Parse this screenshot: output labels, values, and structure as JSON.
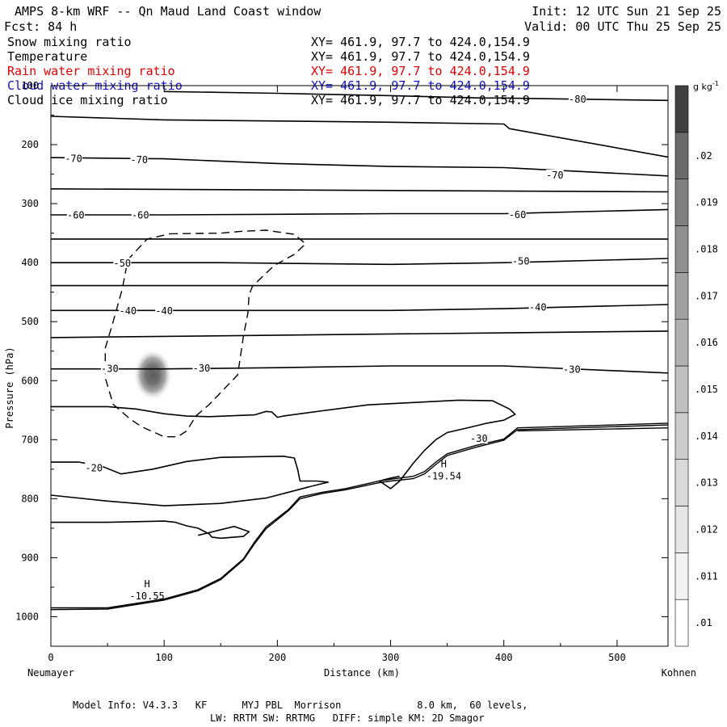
{
  "header": {
    "title": "AMPS 8-km WRF -- Qn Maud Land Coast window",
    "init": "Init: 12 UTC Sun 21 Sep 25",
    "fcst": "Fcst:   84 h",
    "valid": "Valid: 00 UTC Thu 25 Sep 25",
    "fields": [
      {
        "name": "Snow mixing ratio",
        "xy": "XY= 461.9, 97.7 to 424.0,154.9",
        "color": "#000000"
      },
      {
        "name": "Temperature",
        "xy": "XY= 461.9, 97.7 to 424.0,154.9",
        "color": "#000000"
      },
      {
        "name": "Rain water mixing ratio",
        "xy": "XY= 461.9, 97.7 to 424.0,154.9",
        "color": "#e00000"
      },
      {
        "name": "Cloud water mixing ratio",
        "xy": "XY= 461.9, 97.7 to 424.0,154.9",
        "color": "#1010c0"
      },
      {
        "name": "Cloud ice mixing ratio",
        "xy": "XY= 461.9, 97.7 to 424.0,154.9",
        "color": "#000000"
      }
    ]
  },
  "footer": {
    "line1": "Model Info: V4.3.3   KF      MYJ PBL  Morrison             8.0 km,  60 levels,",
    "line2": "LW: RRTM SW: RRTMG   DIFF: simple KM: 2D Smagor"
  },
  "chart_data": {
    "type": "cross-section contour",
    "xlabel": "Distance (km)",
    "ylabel": "Pressure (hPa)",
    "xlim": [
      0,
      545
    ],
    "ylim": [
      1050,
      100
    ],
    "x_ticks": [
      0,
      100,
      200,
      300,
      400,
      500
    ],
    "y_ticks": [
      100,
      200,
      300,
      400,
      500,
      600,
      700,
      800,
      900,
      1000
    ],
    "left_endpoint": "Neumayer",
    "right_endpoint": "Kohnen",
    "colorbar": {
      "unit": "g kg",
      "unit_exp": "-1",
      "levels": [
        ".01",
        ".011",
        ".012",
        ".013",
        ".014",
        ".015",
        ".016",
        ".017",
        ".018",
        ".019",
        ".02"
      ],
      "colors": [
        "#ffffff",
        "#f2f2f2",
        "#e6e6e6",
        "#d9d9d9",
        "#cccccc",
        "#bfbfbf",
        "#b0b0b0",
        "#a0a0a0",
        "#909090",
        "#808080",
        "#6b6b6b",
        "#404040"
      ]
    },
    "shaded_region": {
      "field": "Snow mixing ratio",
      "center_x_km": 90,
      "center_p_hPa": 590,
      "peak_g_kg": 0.016
    },
    "temperature_isotherms": [
      {
        "label": "-80",
        "points": [
          [
            100,
            110
          ],
          [
            200,
            113
          ],
          [
            300,
            117
          ],
          [
            380,
            121
          ],
          [
            400,
            121
          ],
          [
            430,
            122
          ],
          [
            545,
            125
          ]
        ]
      },
      {
        "label": "",
        "points": [
          [
            0,
            152
          ],
          [
            100,
            158
          ],
          [
            200,
            160
          ],
          [
            300,
            162
          ],
          [
            400,
            165
          ],
          [
            405,
            173
          ],
          [
            545,
            221
          ]
        ]
      },
      {
        "label": "-70",
        "points": [
          [
            0,
            222
          ],
          [
            100,
            224
          ],
          [
            200,
            232
          ],
          [
            300,
            237
          ],
          [
            400,
            239
          ],
          [
            545,
            253
          ]
        ]
      },
      {
        "label": "",
        "points": [
          [
            0,
            275
          ],
          [
            545,
            280
          ]
        ]
      },
      {
        "label": "-60",
        "points": [
          [
            0,
            319
          ],
          [
            100,
            319
          ],
          [
            200,
            318
          ],
          [
            300,
            317
          ],
          [
            400,
            317
          ],
          [
            545,
            310
          ]
        ]
      },
      {
        "label": "",
        "points": [
          [
            0,
            360
          ],
          [
            545,
            360
          ]
        ]
      },
      {
        "label": "-50",
        "points": [
          [
            0,
            400
          ],
          [
            150,
            400
          ],
          [
            300,
            403
          ],
          [
            400,
            400
          ],
          [
            545,
            393
          ]
        ]
      },
      {
        "label": "",
        "points": [
          [
            0,
            439
          ],
          [
            545,
            439
          ]
        ]
      },
      {
        "label": "-40",
        "points": [
          [
            0,
            481
          ],
          [
            100,
            481
          ],
          [
            300,
            481
          ],
          [
            400,
            478
          ],
          [
            545,
            471
          ]
        ]
      },
      {
        "label": "",
        "points": [
          [
            0,
            527
          ],
          [
            545,
            516
          ]
        ]
      },
      {
        "label": "-30",
        "points": [
          [
            0,
            580
          ],
          [
            100,
            580
          ],
          [
            200,
            578
          ],
          [
            300,
            575
          ],
          [
            400,
            575
          ],
          [
            545,
            587
          ]
        ]
      },
      {
        "label": "",
        "points": [
          [
            0,
            644
          ],
          [
            50,
            644
          ],
          [
            75,
            648
          ],
          [
            100,
            656
          ],
          [
            120,
            660
          ],
          [
            140,
            661
          ],
          [
            180,
            658
          ],
          [
            190,
            652
          ],
          [
            195,
            653
          ],
          [
            200,
            662
          ],
          [
            205,
            660
          ],
          [
            240,
            651
          ],
          [
            280,
            641
          ],
          [
            320,
            637
          ],
          [
            360,
            633
          ],
          [
            390,
            634
          ],
          [
            405,
            648
          ],
          [
            410,
            657
          ],
          [
            400,
            667
          ],
          [
            385,
            672
          ],
          [
            370,
            679
          ],
          [
            350,
            688
          ],
          [
            340,
            700
          ],
          [
            330,
            718
          ],
          [
            320,
            740
          ],
          [
            308,
            770
          ],
          [
            300,
            783
          ],
          [
            294,
            775
          ],
          [
            290,
            770
          ],
          [
            300,
            765
          ],
          [
            308,
            762
          ]
        ]
      },
      {
        "label": "-20",
        "points": [
          [
            0,
            738
          ],
          [
            25,
            738
          ],
          [
            45,
            745
          ],
          [
            62,
            758
          ],
          [
            90,
            750
          ],
          [
            120,
            737
          ],
          [
            150,
            730
          ],
          [
            205,
            728
          ],
          [
            215,
            731
          ],
          [
            218,
            751
          ],
          [
            220,
            770
          ],
          [
            235,
            770
          ],
          [
            245,
            772
          ],
          [
            230,
            779
          ],
          [
            210,
            789
          ],
          [
            190,
            799
          ],
          [
            150,
            808
          ],
          [
            100,
            812
          ],
          [
            50,
            804
          ],
          [
            0,
            794
          ]
        ]
      },
      {
        "label": "",
        "points": [
          [
            0,
            840
          ],
          [
            50,
            840
          ],
          [
            100,
            838
          ],
          [
            110,
            840
          ],
          [
            120,
            846
          ],
          [
            130,
            850
          ],
          [
            135,
            855
          ],
          [
            140,
            860
          ],
          [
            142,
            865
          ],
          [
            150,
            867
          ],
          [
            170,
            864
          ],
          [
            175,
            856
          ],
          [
            162,
            847
          ],
          [
            130,
            862
          ]
        ]
      }
    ],
    "terrain_lines": [
      {
        "points": [
          [
            0,
            988
          ],
          [
            50,
            987
          ],
          [
            100,
            972
          ],
          [
            130,
            956
          ],
          [
            150,
            937
          ],
          [
            170,
            904
          ],
          [
            180,
            876
          ],
          [
            190,
            851
          ],
          [
            210,
            820
          ],
          [
            220,
            800
          ],
          [
            240,
            791
          ],
          [
            260,
            785
          ],
          [
            290,
            773
          ],
          [
            300,
            770
          ],
          [
            320,
            766
          ],
          [
            330,
            758
          ],
          [
            340,
            742
          ],
          [
            350,
            727
          ],
          [
            375,
            713
          ],
          [
            400,
            701
          ],
          [
            412,
            683
          ],
          [
            545,
            675
          ]
        ]
      },
      {
        "points": [
          [
            0,
            985
          ],
          [
            50,
            985
          ],
          [
            100,
            970
          ],
          [
            130,
            954
          ],
          [
            150,
            935
          ],
          [
            170,
            902
          ],
          [
            180,
            873
          ],
          [
            190,
            848
          ],
          [
            210,
            818
          ],
          [
            220,
            797
          ],
          [
            240,
            789
          ],
          [
            260,
            783
          ],
          [
            290,
            770
          ],
          [
            300,
            767
          ],
          [
            320,
            762
          ],
          [
            330,
            754
          ],
          [
            340,
            738
          ],
          [
            350,
            724
          ],
          [
            375,
            710
          ],
          [
            400,
            699
          ],
          [
            412,
            680
          ],
          [
            545,
            672
          ]
        ]
      },
      {
        "points": [
          [
            412,
            685
          ],
          [
            545,
            680
          ]
        ]
      }
    ],
    "dashed_contour": {
      "field": "Rain water mixing ratio",
      "points": [
        [
          105,
          351
        ],
        [
          150,
          350
        ],
        [
          168,
          347
        ],
        [
          190,
          345
        ],
        [
          215,
          352
        ],
        [
          225,
          368
        ],
        [
          215,
          386
        ],
        [
          197,
          405
        ],
        [
          178,
          440
        ],
        [
          175,
          455
        ],
        [
          174,
          485
        ],
        [
          170,
          525
        ],
        [
          165,
          590
        ],
        [
          150,
          620
        ],
        [
          140,
          640
        ],
        [
          128,
          660
        ],
        [
          120,
          685
        ],
        [
          112,
          695
        ],
        [
          100,
          695
        ],
        [
          80,
          678
        ],
        [
          70,
          665
        ],
        [
          55,
          640
        ],
        [
          48,
          595
        ],
        [
          48,
          545
        ],
        [
          55,
          500
        ],
        [
          63,
          445
        ],
        [
          68,
          395
        ],
        [
          85,
          360
        ],
        [
          105,
          351
        ]
      ]
    },
    "contour_labels": [
      {
        "text": "-80",
        "x": 465,
        "p": 123
      },
      {
        "text": "-70",
        "x": 20,
        "p": 224
      },
      {
        "text": "-70",
        "x": 78,
        "p": 226
      },
      {
        "text": "-70",
        "x": 445,
        "p": 252
      },
      {
        "text": "-60",
        "x": 22,
        "p": 320
      },
      {
        "text": "-60",
        "x": 79,
        "p": 320
      },
      {
        "text": "-60",
        "x": 412,
        "p": 319
      },
      {
        "text": "-50",
        "x": 63,
        "p": 401
      },
      {
        "text": "-50",
        "x": 415,
        "p": 398
      },
      {
        "text": "-40",
        "x": 68,
        "p": 482
      },
      {
        "text": "-40",
        "x": 100,
        "p": 482
      },
      {
        "text": "-40",
        "x": 430,
        "p": 476
      },
      {
        "text": "-30",
        "x": 52,
        "p": 580
      },
      {
        "text": "-30",
        "x": 133,
        "p": 579
      },
      {
        "text": "-30",
        "x": 460,
        "p": 581
      },
      {
        "text": "-30",
        "x": 378,
        "p": 698
      },
      {
        "text": "-20",
        "x": 38,
        "p": 748
      }
    ],
    "extrema": [
      {
        "type": "H",
        "value": "-10.55",
        "x": 65,
        "p": 958
      },
      {
        "type": "H",
        "value": "-19.54",
        "x": 327,
        "p": 755
      }
    ]
  }
}
